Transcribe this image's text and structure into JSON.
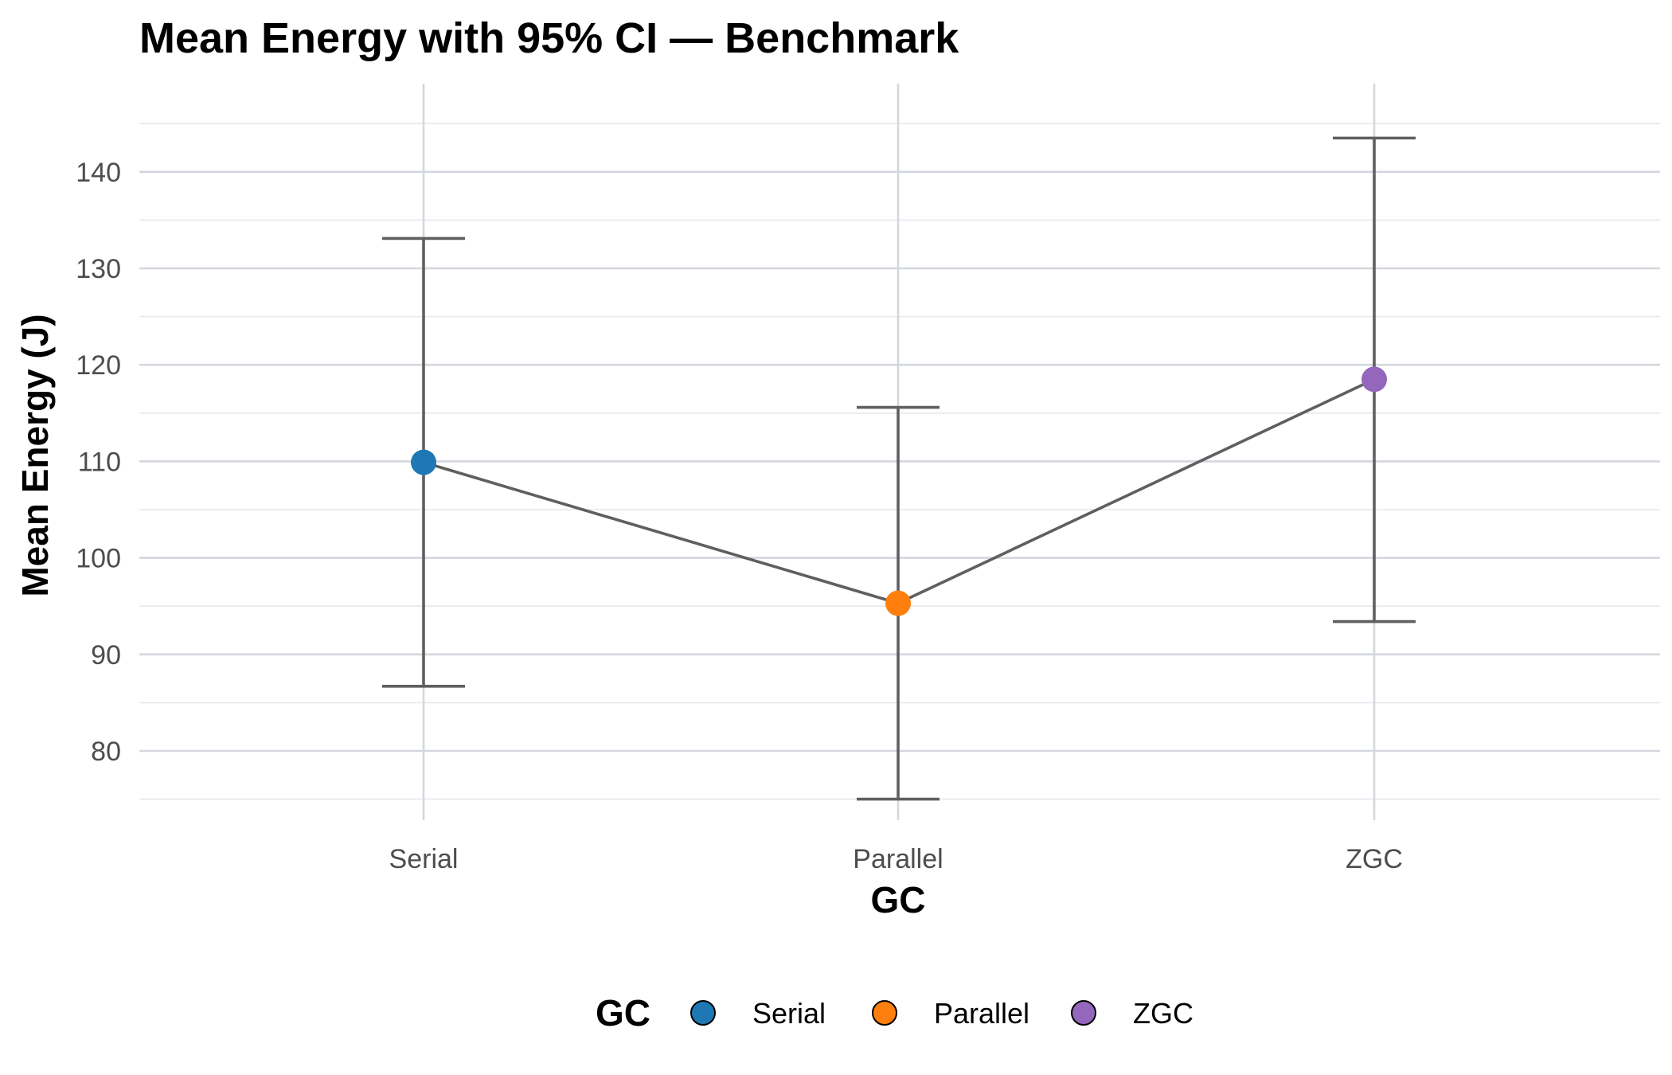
{
  "chart_data": {
    "type": "scatter",
    "title": "Mean Energy with 95% CI — Benchmark",
    "xlabel": "GC",
    "ylabel": "Mean Energy (J)",
    "categories": [
      "Serial",
      "Parallel",
      "ZGC"
    ],
    "series": [
      {
        "values": [
          109.9,
          95.3,
          118.5
        ],
        "ci_lower": [
          86.7,
          75.0,
          93.4
        ],
        "ci_upper": [
          133.1,
          115.6,
          143.5
        ],
        "colors": [
          "#1f77b4",
          "#ff7f0e",
          "#9467bd"
        ]
      }
    ],
    "y_ticks": [
      80,
      90,
      100,
      110,
      120,
      130,
      140
    ],
    "ylim": [
      72.5,
      148
    ],
    "grid": true,
    "legend": {
      "title": "GC",
      "position": "bottom",
      "entries": [
        {
          "label": "Serial",
          "color": "#1f77b4"
        },
        {
          "label": "Parallel",
          "color": "#ff7f0e"
        },
        {
          "label": "ZGC",
          "color": "#9467bd"
        }
      ]
    }
  }
}
